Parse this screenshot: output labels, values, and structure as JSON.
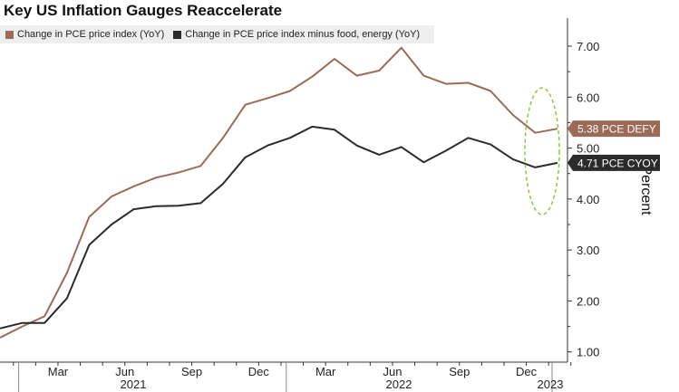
{
  "chart_data": {
    "type": "line",
    "title": "Key US Inflation Gauges Reaccelerate",
    "ylabel": "Percent",
    "xlabel": "",
    "ylim": [
      0.8,
      7.55
    ],
    "yticks": [
      "1.00",
      "2.00",
      "3.00",
      "4.00",
      "5.00",
      "6.00",
      "7.00"
    ],
    "x": [
      "2020-12",
      "2021-01",
      "2021-02",
      "2021-03",
      "2021-04",
      "2021-05",
      "2021-06",
      "2021-07",
      "2021-08",
      "2021-09",
      "2021-10",
      "2021-11",
      "2021-12",
      "2022-01",
      "2022-02",
      "2022-03",
      "2022-04",
      "2022-05",
      "2022-06",
      "2022-07",
      "2022-08",
      "2022-09",
      "2022-10",
      "2022-11",
      "2022-12",
      "2023-01"
    ],
    "month_ticks": [
      "Mar",
      "Jun",
      "Sep",
      "Dec",
      "Mar",
      "Jun",
      "Sep",
      "Dec"
    ],
    "year_labels": [
      "2021",
      "2022",
      "2023"
    ],
    "series": [
      {
        "name": "Change in PCE price index (YoY)",
        "color": "#9b6b57",
        "values": [
          1.28,
          1.5,
          1.7,
          2.55,
          3.65,
          4.05,
          4.25,
          4.42,
          4.52,
          4.65,
          5.2,
          5.85,
          5.98,
          6.12,
          6.4,
          6.75,
          6.42,
          6.52,
          6.97,
          6.42,
          6.26,
          6.28,
          6.12,
          5.65,
          5.3,
          5.38
        ],
        "end_label": "5.38 PCE DEFY"
      },
      {
        "name": "Change in PCE price index minus food, energy (YoY)",
        "color": "#2b2b2b",
        "values": [
          1.46,
          1.57,
          1.57,
          2.05,
          3.1,
          3.5,
          3.8,
          3.86,
          3.87,
          3.92,
          4.3,
          4.82,
          5.05,
          5.2,
          5.42,
          5.36,
          5.05,
          4.87,
          5.02,
          4.72,
          4.95,
          5.2,
          5.07,
          4.78,
          4.62,
          4.71
        ],
        "end_label": "4.71 PCE CYOY"
      }
    ]
  }
}
